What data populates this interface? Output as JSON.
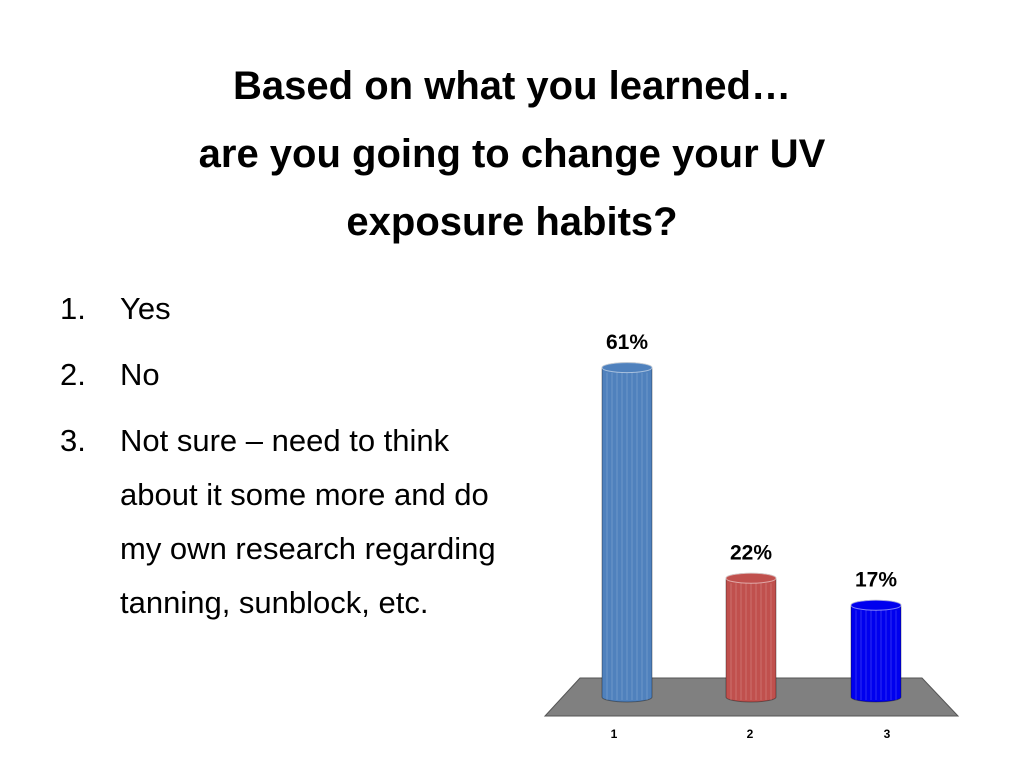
{
  "title_lines": [
    "Based on what you learned…",
    "are you going to change your UV",
    "exposure habits?"
  ],
  "list": [
    {
      "number": "1.",
      "text": "Yes"
    },
    {
      "number": "2.",
      "text": "No"
    },
    {
      "number": "3.",
      "text": "Not sure – need to think about it some more and do my own research regarding tanning, sunblock, etc."
    }
  ],
  "chart_data": {
    "type": "bar",
    "categories": [
      "1",
      "2",
      "3"
    ],
    "values": [
      61,
      22,
      17
    ],
    "value_labels": [
      "61%",
      "22%",
      "17%"
    ],
    "colors": [
      "#4f81bd",
      "#c0504d",
      "#0000ee"
    ]
  }
}
